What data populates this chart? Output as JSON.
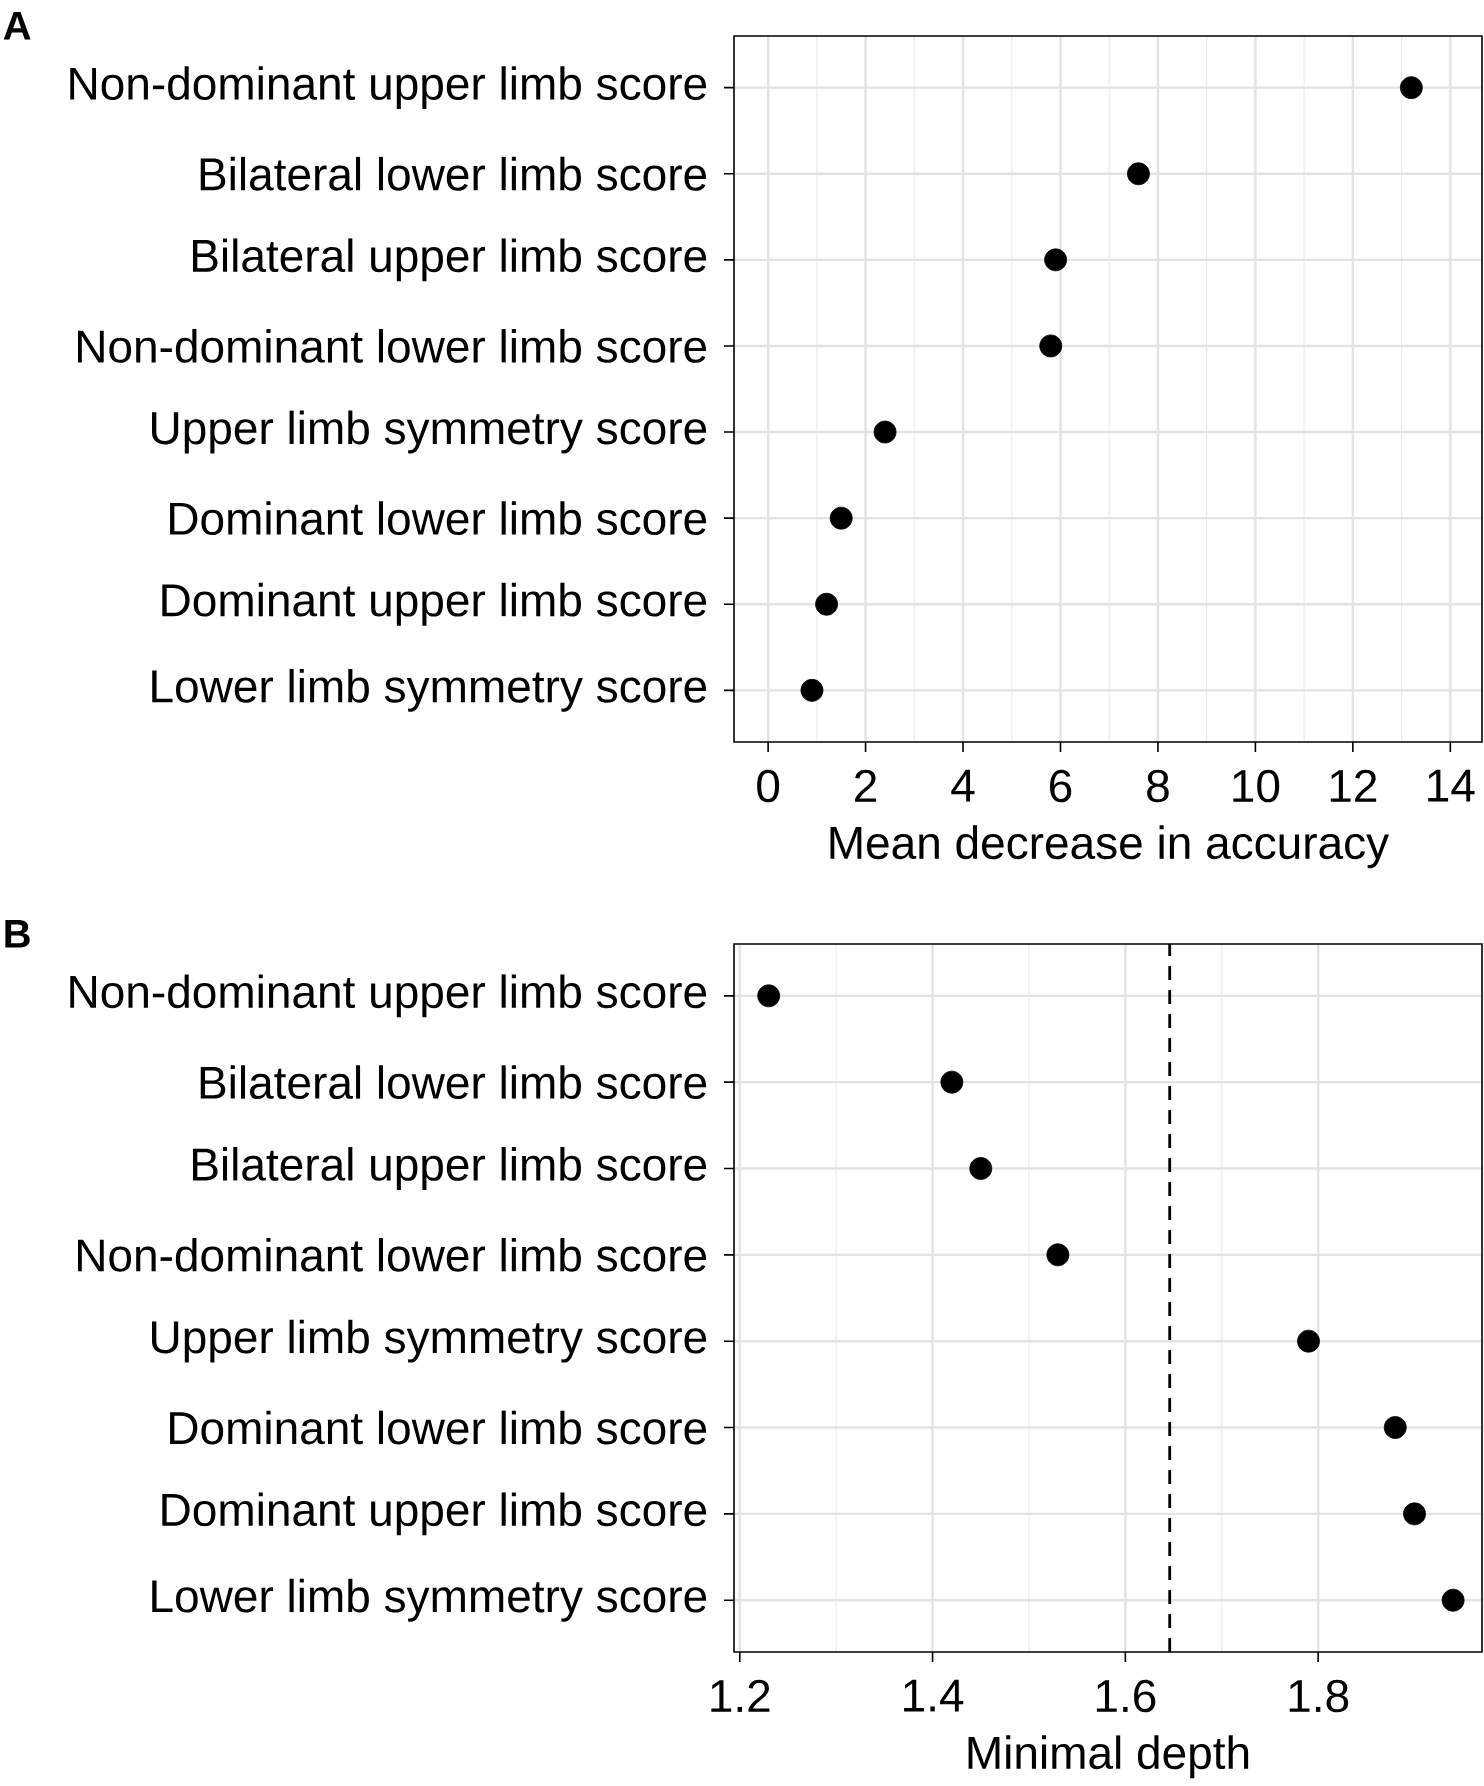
{
  "chart_data": [
    {
      "type": "scatter",
      "title": "A",
      "orientation": "horizontal",
      "xlabel": "Mean decrease in accuracy",
      "categories": [
        "Non-dominant upper limb score",
        "Bilateral lower limb score",
        "Bilateral upper limb score",
        "Non-dominant lower limb score",
        "Upper limb symmetry score",
        "Dominant lower limb score",
        "Dominant upper limb score",
        "Lower limb symmetry score"
      ],
      "values": [
        13.2,
        7.6,
        5.9,
        5.8,
        2.4,
        1.5,
        1.2,
        0.9
      ],
      "color": "#000000",
      "marker": "circle",
      "grid": true,
      "xlim": [
        -0.7,
        14.65
      ],
      "xticks": [
        0,
        2,
        4,
        6,
        8,
        10,
        12,
        14
      ]
    },
    {
      "type": "scatter",
      "title": "B",
      "orientation": "horizontal",
      "xlabel": "Minimal depth",
      "categories": [
        "Non-dominant upper limb score",
        "Bilateral lower limb score",
        "Bilateral upper limb score",
        "Non-dominant lower limb score",
        "Upper limb symmetry score",
        "Dominant lower limb score",
        "Dominant upper limb score",
        "Lower limb symmetry score"
      ],
      "values": [
        1.23,
        1.42,
        1.45,
        1.53,
        1.79,
        1.88,
        1.9,
        1.94
      ],
      "color": "#000000",
      "marker": "circle",
      "grid": true,
      "xlim": [
        1.194,
        1.97
      ],
      "xticks": [
        1.2,
        1.4,
        1.6,
        1.8
      ],
      "ref_lines": [
        {
          "axis": "x",
          "value": 1.646,
          "line_style": "dashed",
          "color": "#000000"
        }
      ]
    }
  ]
}
